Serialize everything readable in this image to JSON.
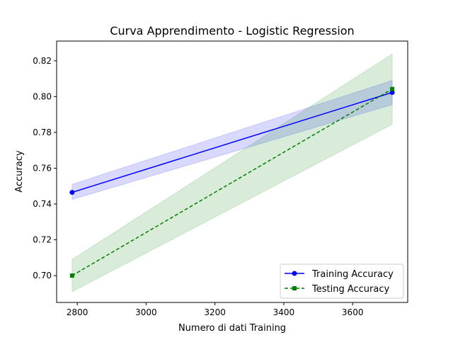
{
  "chart_data": {
    "type": "line",
    "title": "Curva Apprendimento - Logistic Regression",
    "xlabel": "Numero di dati Training",
    "ylabel": "Accuracy",
    "xlim": [
      2740,
      3760
    ],
    "ylim": [
      0.685,
      0.831
    ],
    "xticks": [
      2800,
      3000,
      3200,
      3400,
      3600
    ],
    "yticks": [
      0.7,
      0.72,
      0.74,
      0.76,
      0.78,
      0.8,
      0.82
    ],
    "grid": false,
    "legend_position": "lower-right",
    "x": [
      2785,
      3715
    ],
    "series": [
      {
        "name": "Training Accuracy",
        "values": [
          0.7465,
          0.8023
        ],
        "band_low": [
          0.7425,
          0.7955
        ],
        "band_high": [
          0.751,
          0.809
        ],
        "color": "#0000ff",
        "band_color": "#0000ff",
        "line_style": "solid",
        "marker": "circle"
      },
      {
        "name": "Testing Accuracy",
        "values": [
          0.7,
          0.8042
        ],
        "band_low": [
          0.691,
          0.7845
        ],
        "band_high": [
          0.709,
          0.8238
        ],
        "color": "#008000",
        "band_color": "#008000",
        "line_style": "dashed",
        "marker": "square"
      }
    ]
  }
}
